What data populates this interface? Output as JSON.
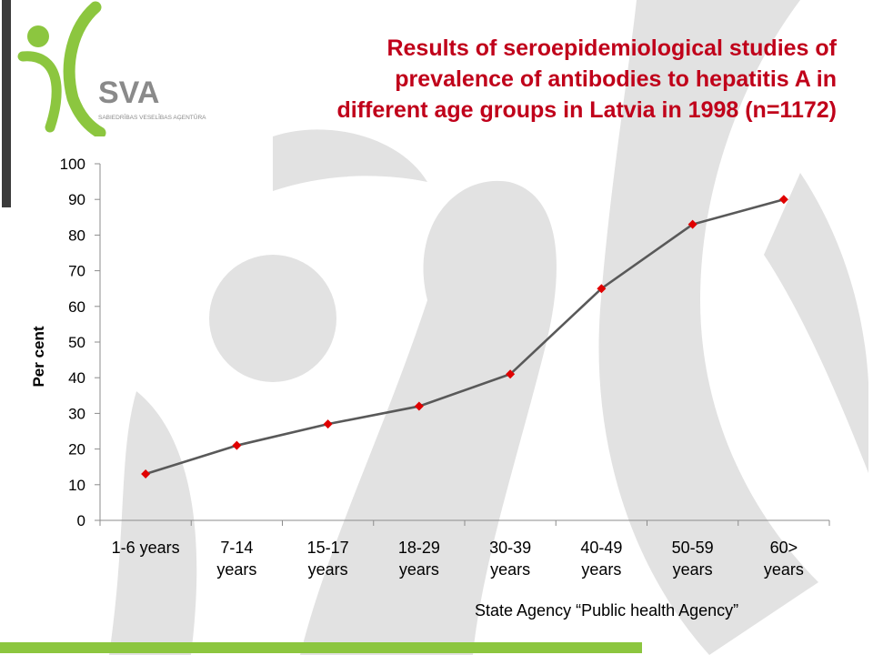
{
  "brand": {
    "logo_text": "SVA",
    "logo_subtext": "SABIEDRĪBAS VESELĪBAS AĢENTŪRA",
    "accent_color": "#c0001a",
    "brand_green": "#8cc63f"
  },
  "slide": {
    "title_lines": [
      "Results of seroepidemiological studies of",
      "prevalence of antibodies to hepatitis A in",
      "different age groups in Latvia in 1998 (n=1172)"
    ],
    "source_note": "State Agency “Public health Agency”"
  },
  "chart_data": {
    "type": "line",
    "categories": [
      [
        "1-6 years"
      ],
      [
        "7-14",
        "years"
      ],
      [
        "15-17",
        "years"
      ],
      [
        "18-29",
        "years"
      ],
      [
        "30-39",
        "years"
      ],
      [
        "40-49",
        "years"
      ],
      [
        "50-59",
        "years"
      ],
      [
        "60>",
        "years"
      ]
    ],
    "series": [
      {
        "values": [
          13,
          21,
          27,
          32,
          41,
          65,
          83,
          90
        ],
        "line_color": "#595959",
        "marker_color": "#e00000",
        "marker": "diamond"
      }
    ],
    "xlabel": "",
    "ylabel": "Per cent",
    "ylim": [
      0,
      100
    ],
    "yticks": [
      0,
      10,
      20,
      30,
      40,
      50,
      60,
      70,
      80,
      90,
      100
    ],
    "grid": false,
    "legend": "none"
  }
}
